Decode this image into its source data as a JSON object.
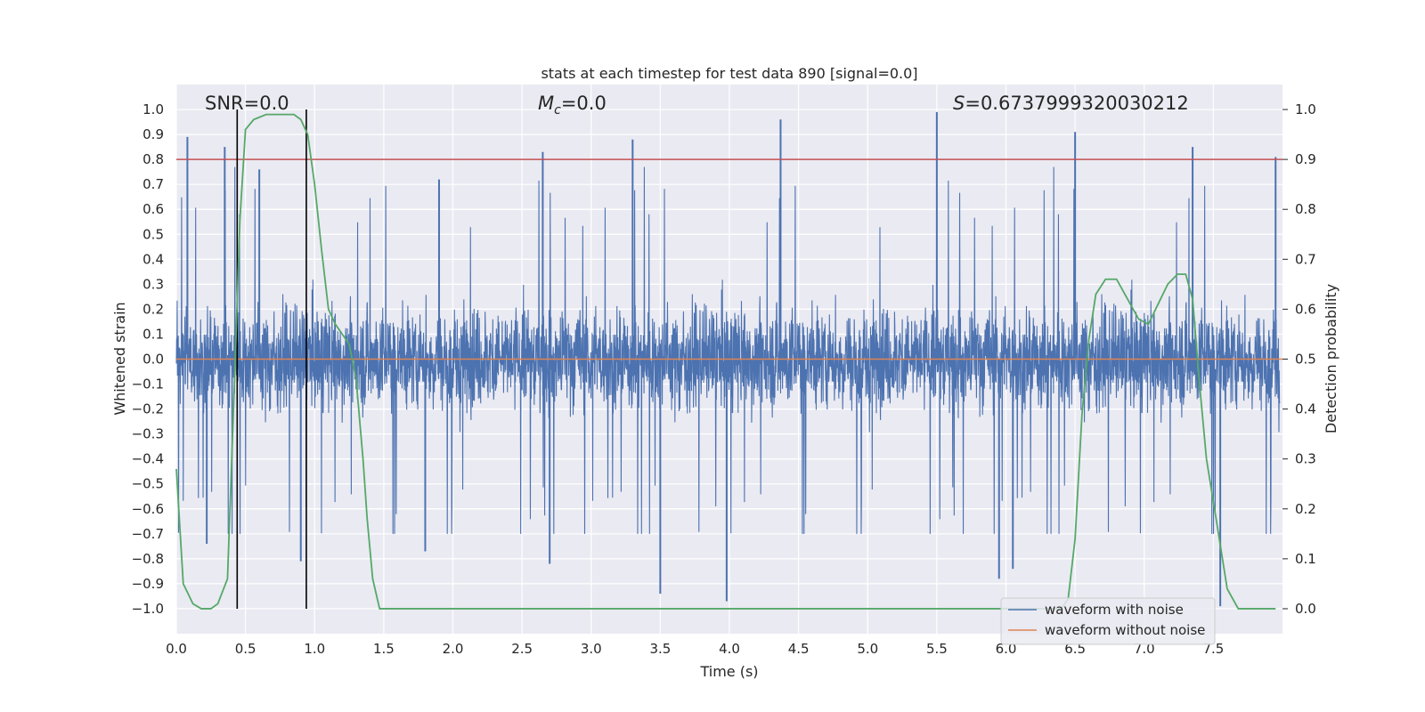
{
  "chart_data": {
    "type": "line",
    "title": "stats at each timestep for test data 890 [signal=0.0]",
    "xlabel": "Time (s)",
    "ylabel": "Whitened strain",
    "y2label": "Detection probability",
    "xlim": [
      0.0,
      8.0
    ],
    "ylim": [
      -1.1,
      1.1
    ],
    "y2lim": [
      -0.05,
      1.05
    ],
    "xticks": [
      "0.0",
      "0.5",
      "1.0",
      "1.5",
      "2.0",
      "2.5",
      "3.0",
      "3.5",
      "4.0",
      "4.5",
      "5.0",
      "5.5",
      "6.0",
      "6.5",
      "7.0",
      "7.5"
    ],
    "yticks": [
      "1.0",
      "0.9",
      "0.8",
      "0.7",
      "0.6",
      "0.5",
      "0.4",
      "0.3",
      "0.2",
      "0.1",
      "0.0",
      "-0.1",
      "-0.2",
      "-0.3",
      "-0.4",
      "-0.5",
      "-0.6",
      "-0.7",
      "-0.8",
      "-0.9",
      "-1.0"
    ],
    "y2ticks": [
      "1.0",
      "0.9",
      "0.8",
      "0.7",
      "0.6",
      "0.5",
      "0.4",
      "0.3",
      "0.2",
      "0.1",
      "0.0"
    ],
    "grid": true,
    "annotations": {
      "snr": "SNR=0.0",
      "mc_symbol": "M",
      "mc_sub": "c",
      "mc_value": "=0.0",
      "s_symbol": "S",
      "s_value": "=0.6737999320030212"
    },
    "threshold_line": {
      "y2": 0.9,
      "color": "#c44e52"
    },
    "vertical_lines": {
      "x": [
        0.44,
        0.94
      ],
      "color": "#000000"
    },
    "series": [
      {
        "name": "waveform with noise",
        "color": "#4c72b0",
        "description_of_values": "dense noise, amplitude mostly within ±0.5, peaks up to ~0.99 and down to ~-0.97",
        "notable_peaks": [
          {
            "x": 0.08,
            "y": 0.89
          },
          {
            "x": 0.35,
            "y": 0.85
          },
          {
            "x": 0.6,
            "y": 0.76
          },
          {
            "x": 1.9,
            "y": 0.72
          },
          {
            "x": 2.65,
            "y": 0.83
          },
          {
            "x": 3.3,
            "y": 0.88
          },
          {
            "x": 4.37,
            "y": 0.96
          },
          {
            "x": 5.5,
            "y": 0.99
          },
          {
            "x": 6.5,
            "y": 0.91
          },
          {
            "x": 7.35,
            "y": 0.85
          },
          {
            "x": 7.95,
            "y": 0.81
          }
        ],
        "notable_troughs": [
          {
            "x": 0.22,
            "y": -0.74
          },
          {
            "x": 0.9,
            "y": -0.81
          },
          {
            "x": 1.8,
            "y": -0.77
          },
          {
            "x": 2.7,
            "y": -0.82
          },
          {
            "x": 3.5,
            "y": -0.94
          },
          {
            "x": 3.98,
            "y": -0.97
          },
          {
            "x": 5.95,
            "y": -0.88
          },
          {
            "x": 6.05,
            "y": -0.84
          },
          {
            "x": 7.55,
            "y": -0.99
          }
        ]
      },
      {
        "name": "waveform without noise",
        "color": "#dd8452",
        "x": [
          0.0,
          8.0
        ],
        "y": [
          0.0,
          0.0
        ]
      },
      {
        "name": "",
        "axis": "right",
        "color": "#55a868",
        "x": [
          0.0,
          0.05,
          0.12,
          0.18,
          0.25,
          0.3,
          0.37,
          0.42,
          0.46,
          0.5,
          0.56,
          0.65,
          0.75,
          0.85,
          0.9,
          0.95,
          1.0,
          1.05,
          1.1,
          1.15,
          1.2,
          1.25,
          1.3,
          1.35,
          1.38,
          1.42,
          1.47,
          1.55,
          2.0,
          3.0,
          4.0,
          5.0,
          6.0,
          6.4,
          6.45,
          6.5,
          6.55,
          6.6,
          6.65,
          6.72,
          6.8,
          6.88,
          6.96,
          7.03,
          7.1,
          7.17,
          7.24,
          7.3,
          7.35,
          7.4,
          7.45,
          7.52,
          7.6,
          7.68,
          7.95
        ],
        "y": [
          0.28,
          0.05,
          0.01,
          0.0,
          0.0,
          0.01,
          0.06,
          0.45,
          0.78,
          0.96,
          0.98,
          0.99,
          0.99,
          0.99,
          0.98,
          0.95,
          0.85,
          0.72,
          0.6,
          0.57,
          0.55,
          0.53,
          0.46,
          0.3,
          0.18,
          0.06,
          0.0,
          0.0,
          0.0,
          0.0,
          0.0,
          0.0,
          0.0,
          0.0,
          0.02,
          0.14,
          0.39,
          0.54,
          0.63,
          0.66,
          0.66,
          0.62,
          0.58,
          0.57,
          0.61,
          0.65,
          0.67,
          0.67,
          0.62,
          0.45,
          0.3,
          0.18,
          0.04,
          0.0,
          0.0
        ]
      }
    ],
    "legend": {
      "position": "lower-right",
      "entries": [
        "waveform with noise",
        "waveform without noise"
      ]
    }
  }
}
